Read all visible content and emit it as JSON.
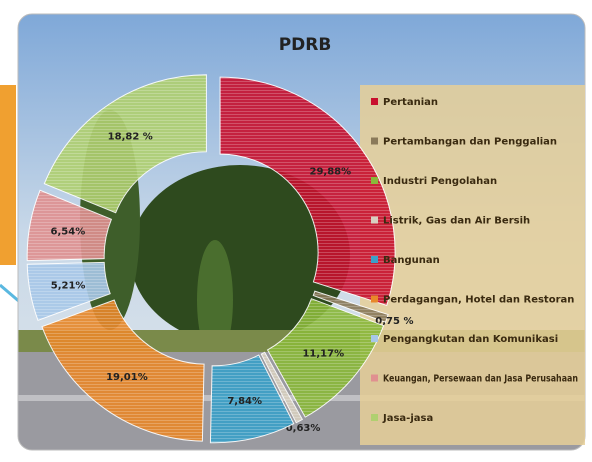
{
  "chart_data": {
    "type": "donut",
    "title": "PDRB",
    "categories": [
      "Pertanian",
      "Pertambangan dan Penggalian",
      "Industri Pengolahan",
      "Listrik, Gas dan Air Bersih",
      "Bangunan",
      "Perdagangan, Hotel dan Restoran",
      "Pengangkutan dan Komunikasi",
      "Keuangan, Persewaan dan Jasa Perusahaan",
      "Jasa-jasa"
    ],
    "values": [
      29.88,
      0.75,
      11.17,
      0.63,
      7.84,
      19.01,
      5.21,
      6.54,
      18.82
    ],
    "value_labels": [
      "29,88%",
      "0,75 %",
      "11,17%",
      "0,63%",
      "7,84%",
      "19,01%",
      "5,21%",
      "6,54%",
      "18,82 %"
    ],
    "colors": [
      "#c8102e",
      "#8a7a5a",
      "#8ab83a",
      "#d8d0c0",
      "#3aa0c8",
      "#e8882a",
      "#a8c8e8",
      "#e09090",
      "#b0d070"
    ],
    "legend": "right"
  }
}
